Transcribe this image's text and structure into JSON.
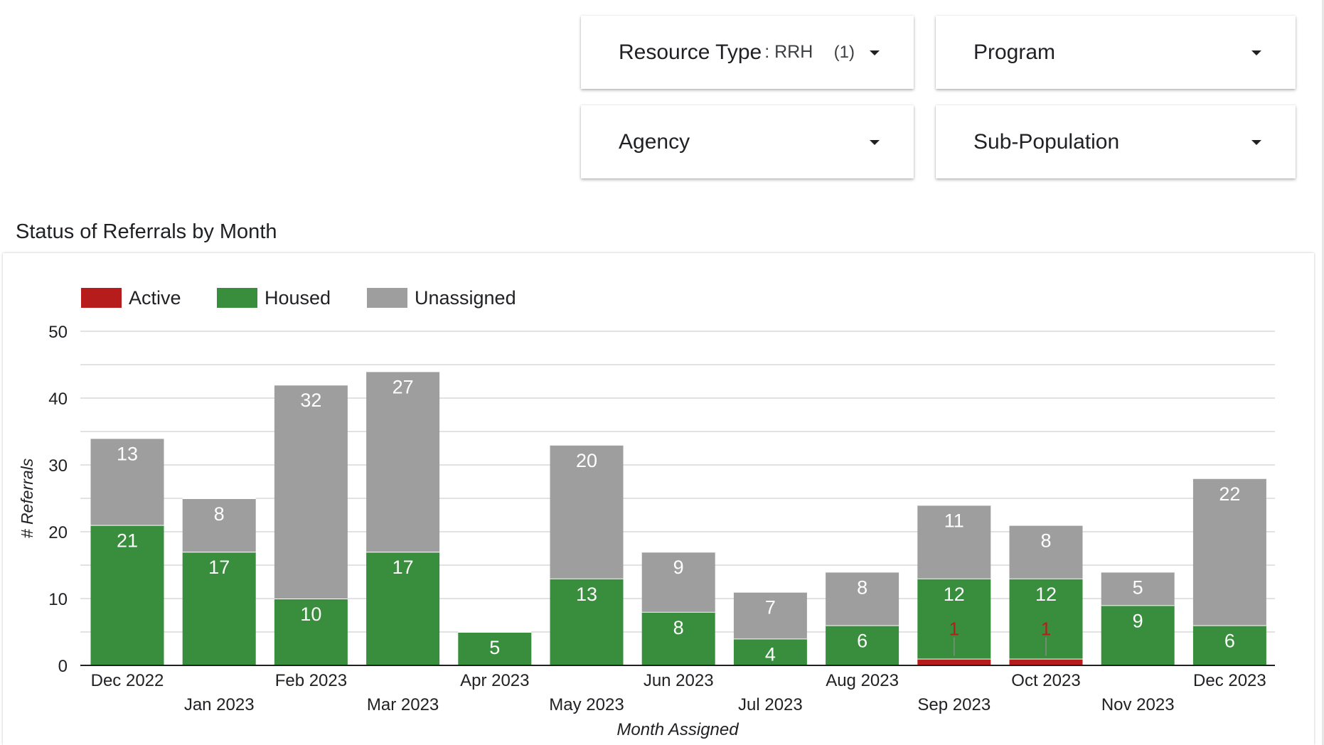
{
  "filters": {
    "resource_type": {
      "label": "Resource Type",
      "value": ": RRH",
      "count": "(1)"
    },
    "program": {
      "label": "Program"
    },
    "agency": {
      "label": "Agency"
    },
    "sub_population": {
      "label": "Sub-Population"
    }
  },
  "colors": {
    "active": "#b71c1c",
    "housed": "#388e3c",
    "unassigned": "#9e9e9e",
    "grid": "#d9d9d9"
  },
  "chart_data": {
    "type": "bar",
    "stacked": true,
    "title": "Status of Referrals by Month",
    "xlabel": "Month Assigned",
    "ylabel": "# Referrals",
    "ylim": [
      0,
      50
    ],
    "yticks": [
      0,
      10,
      20,
      30,
      40,
      50
    ],
    "grid": true,
    "legend_position": "top-left",
    "categories": [
      "Dec 2022",
      "Jan 2023",
      "Feb 2023",
      "Mar 2023",
      "Apr 2023",
      "May 2023",
      "Jun 2023",
      "Jul 2023",
      "Aug 2023",
      "Sep 2023",
      "Oct 2023",
      "Nov 2023",
      "Dec 2023"
    ],
    "series": [
      {
        "name": "Active",
        "color": "#b71c1c",
        "values": [
          0,
          0,
          0,
          0,
          0,
          0,
          0,
          0,
          0,
          1,
          1,
          0,
          0
        ]
      },
      {
        "name": "Housed",
        "color": "#388e3c",
        "values": [
          21,
          17,
          10,
          17,
          5,
          13,
          8,
          4,
          6,
          12,
          12,
          9,
          6
        ]
      },
      {
        "name": "Unassigned",
        "color": "#9e9e9e",
        "values": [
          13,
          8,
          32,
          27,
          0,
          20,
          9,
          7,
          8,
          11,
          8,
          5,
          22
        ]
      }
    ]
  }
}
